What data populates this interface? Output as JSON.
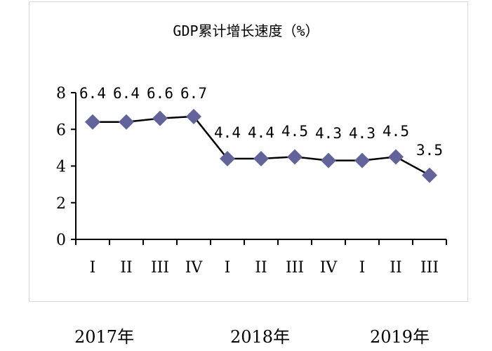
{
  "chart_data": {
    "type": "line",
    "title": "GDP累计增长速度（%）",
    "xlabel": "",
    "ylabel": "",
    "ylim": [
      0,
      8
    ],
    "yticks": [
      0,
      2,
      4,
      6,
      8
    ],
    "grid": false,
    "legend": null,
    "categories": [
      "I",
      "II",
      "III",
      "IV",
      "I",
      "II",
      "III",
      "IV",
      "I",
      "II",
      "III"
    ],
    "groups": [
      {
        "label": "2017年",
        "quarters": [
          "I",
          "II",
          "III",
          "IV"
        ]
      },
      {
        "label": "2018年",
        "quarters": [
          "I",
          "II",
          "III",
          "IV"
        ]
      },
      {
        "label": "2019年",
        "quarters": [
          "I",
          "II",
          "III"
        ]
      }
    ],
    "series": [
      {
        "name": "GDP累计增长速度",
        "values": [
          6.4,
          6.4,
          6.6,
          6.7,
          4.4,
          4.4,
          4.5,
          4.3,
          4.3,
          4.5,
          3.5
        ],
        "data_labels": [
          "6.4",
          "6.4",
          "6.6",
          "6.7",
          "4.4",
          "4.4",
          "4.5",
          "4.3",
          "4.3",
          "4.5",
          "3.5"
        ],
        "marker": "diamond",
        "marker_color": "#62639b",
        "line_color": "#000000"
      }
    ]
  },
  "title": "GDP累计增长速度（%）",
  "y_axis": {
    "ticks": [
      "0",
      "2",
      "4",
      "6",
      "8"
    ]
  },
  "x_axis": {
    "quarters": [
      "I",
      "II",
      "III",
      "IV",
      "I",
      "II",
      "III",
      "IV",
      "I",
      "II",
      "III"
    ]
  },
  "years": [
    "2017年",
    "2018年",
    "2019年"
  ]
}
